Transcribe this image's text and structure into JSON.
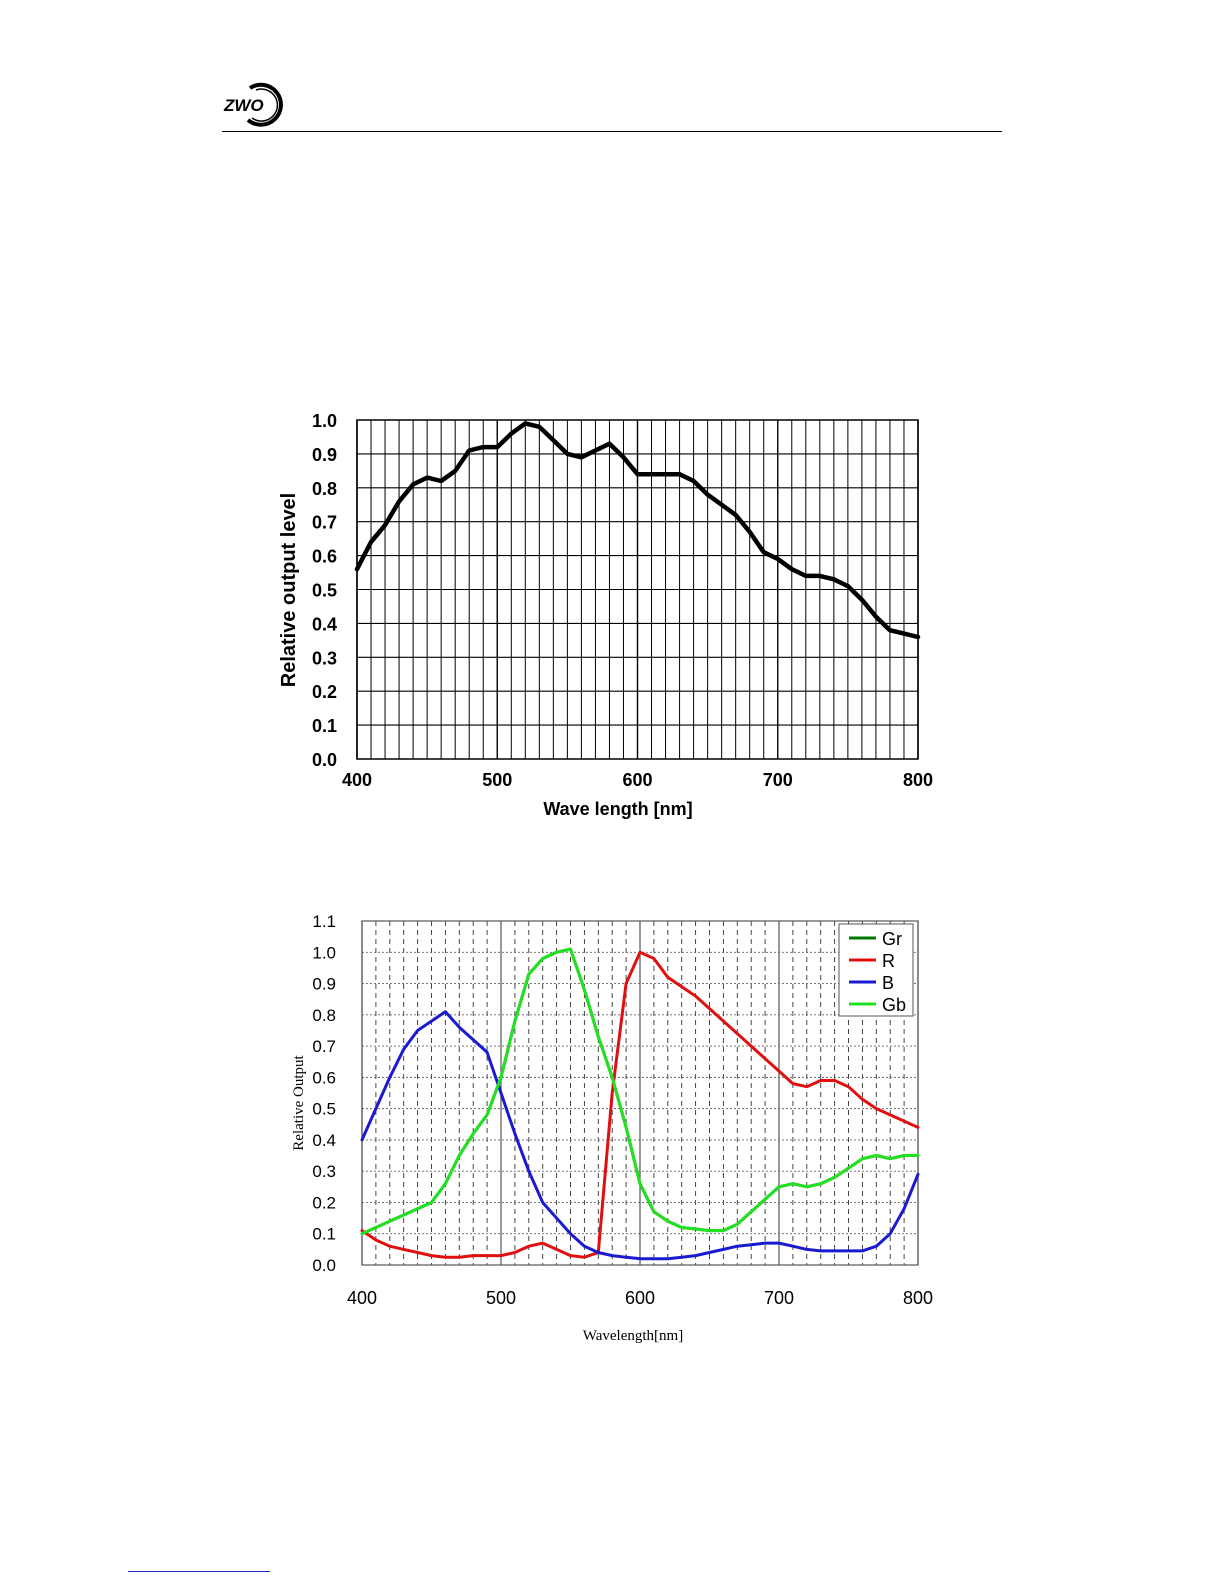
{
  "header": {
    "logo_text": "ZWO"
  },
  "chart_data": [
    {
      "type": "line",
      "title": "",
      "xlabel": "Wave length [nm]",
      "ylabel": "Relative output level",
      "xlim": [
        400,
        800
      ],
      "ylim": [
        0.0,
        1.0
      ],
      "x_ticks": [
        "400",
        "500",
        "600",
        "700",
        "800"
      ],
      "y_ticks": [
        "0.0",
        "0.1",
        "0.2",
        "0.3",
        "0.4",
        "0.5",
        "0.6",
        "0.7",
        "0.8",
        "0.9",
        "1.0"
      ],
      "grid": true,
      "line_color": "#000000",
      "series": [
        {
          "x": [
            400,
            410,
            420,
            430,
            440,
            450,
            460,
            470,
            480,
            490,
            500,
            510,
            520,
            530,
            540,
            550,
            560,
            570,
            580,
            590,
            600,
            610,
            620,
            630,
            640,
            650,
            660,
            670,
            680,
            690,
            700,
            710,
            720,
            730,
            740,
            750,
            760,
            770,
            780,
            790,
            800
          ],
          "y": [
            0.56,
            0.64,
            0.69,
            0.76,
            0.81,
            0.83,
            0.82,
            0.85,
            0.91,
            0.92,
            0.92,
            0.96,
            0.99,
            0.98,
            0.94,
            0.9,
            0.89,
            0.91,
            0.93,
            0.89,
            0.84,
            0.84,
            0.84,
            0.84,
            0.82,
            0.78,
            0.75,
            0.72,
            0.67,
            0.61,
            0.59,
            0.56,
            0.54,
            0.54,
            0.53,
            0.51,
            0.47,
            0.42,
            0.38,
            0.37,
            0.36
          ]
        }
      ]
    },
    {
      "type": "line",
      "title": "",
      "xlabel": "Wavelength[nm]",
      "ylabel": "Relative Output",
      "xlim": [
        400,
        800
      ],
      "ylim": [
        0.0,
        1.1
      ],
      "x_ticks": [
        "400",
        "500",
        "600",
        "700",
        "800"
      ],
      "y_ticks": [
        "0.0",
        "0.1",
        "0.2",
        "0.3",
        "0.4",
        "0.5",
        "0.6",
        "0.7",
        "0.8",
        "0.9",
        "1.0",
        "1.1"
      ],
      "grid": true,
      "legend_position": "top-right",
      "x": [
        400,
        410,
        420,
        430,
        440,
        450,
        460,
        470,
        480,
        490,
        500,
        510,
        520,
        530,
        540,
        550,
        560,
        570,
        580,
        590,
        600,
        610,
        620,
        630,
        640,
        650,
        660,
        670,
        680,
        690,
        700,
        710,
        720,
        730,
        740,
        750,
        760,
        770,
        780,
        790,
        800
      ],
      "series": [
        {
          "name": "Gr",
          "color": "#007a00",
          "values": [
            0.1,
            0.12,
            0.14,
            0.16,
            0.18,
            0.2,
            0.26,
            0.35,
            0.42,
            0.48,
            0.6,
            0.78,
            0.93,
            0.98,
            1.0,
            1.01,
            0.88,
            0.73,
            0.6,
            0.44,
            0.26,
            0.17,
            0.14,
            0.12,
            0.115,
            0.11,
            0.11,
            0.13,
            0.17,
            0.21,
            0.25,
            0.26,
            0.25,
            0.26,
            0.28,
            0.31,
            0.34,
            0.35,
            0.34,
            0.35,
            0.35
          ]
        },
        {
          "name": "R",
          "color": "#e01010",
          "values": [
            0.11,
            0.08,
            0.06,
            0.05,
            0.04,
            0.03,
            0.025,
            0.025,
            0.03,
            0.03,
            0.03,
            0.04,
            0.06,
            0.07,
            0.05,
            0.03,
            0.025,
            0.04,
            0.55,
            0.9,
            1.0,
            0.98,
            0.92,
            0.89,
            0.86,
            0.82,
            0.78,
            0.74,
            0.7,
            0.66,
            0.62,
            0.58,
            0.57,
            0.59,
            0.59,
            0.57,
            0.53,
            0.5,
            0.48,
            0.46,
            0.44
          ]
        },
        {
          "name": "B",
          "color": "#1a1ad0",
          "values": [
            0.4,
            0.5,
            0.6,
            0.69,
            0.75,
            0.78,
            0.81,
            0.76,
            0.72,
            0.68,
            0.55,
            0.42,
            0.3,
            0.2,
            0.15,
            0.1,
            0.06,
            0.04,
            0.03,
            0.025,
            0.02,
            0.02,
            0.02,
            0.025,
            0.03,
            0.04,
            0.05,
            0.06,
            0.065,
            0.07,
            0.07,
            0.06,
            0.05,
            0.045,
            0.045,
            0.045,
            0.045,
            0.06,
            0.1,
            0.18,
            0.29
          ]
        },
        {
          "name": "Gb",
          "color": "#22e022",
          "values": [
            0.1,
            0.12,
            0.14,
            0.16,
            0.18,
            0.2,
            0.26,
            0.35,
            0.42,
            0.48,
            0.6,
            0.78,
            0.93,
            0.98,
            1.0,
            1.01,
            0.88,
            0.73,
            0.6,
            0.44,
            0.26,
            0.17,
            0.14,
            0.12,
            0.115,
            0.11,
            0.11,
            0.13,
            0.17,
            0.21,
            0.25,
            0.26,
            0.25,
            0.26,
            0.28,
            0.31,
            0.34,
            0.35,
            0.34,
            0.35,
            0.35
          ]
        }
      ]
    }
  ]
}
